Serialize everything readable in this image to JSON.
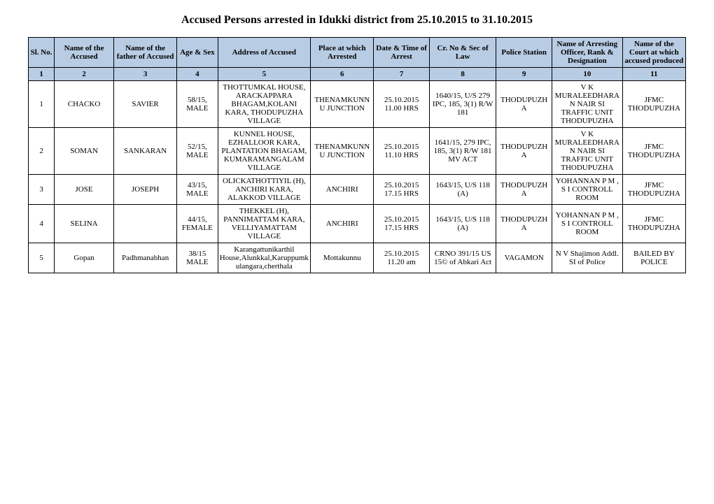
{
  "title": "Accused Persons arrested in   Idukki  district from  25.10.2015 to 31.10.2015",
  "headers": {
    "col1": "Sl. No.",
    "col2": "Name of the Accused",
    "col3": "Name of the father of Accused",
    "col4": "Age & Sex",
    "col5": "Address of Accused",
    "col6": "Place at which Arrested",
    "col7": "Date & Time of Arrest",
    "col8": "Cr. No & Sec of Law",
    "col9": "Police Station",
    "col10": "Name of Arresting Officer, Rank & Designation",
    "col11": "Name of the Court at which accused produced"
  },
  "colnums": {
    "c1": "1",
    "c2": "2",
    "c3": "3",
    "c4": "4",
    "c5": "5",
    "c6": "6",
    "c7": "7",
    "c8": "8",
    "c9": "9",
    "c10": "10",
    "c11": "11"
  },
  "rows": [
    {
      "slno": "1",
      "name": "CHACKO",
      "father": "SAVIER",
      "agesex": "58/15, MALE",
      "address": "THOTTUMKAL HOUSE, ARACKAPPARA BHAGAM,KOLANI KARA, THODUPUZHA VILLAGE",
      "place": "THENAMKUNNU JUNCTION",
      "datetime": "25.10.2015 11.00 HRS",
      "crno": "1640/15, U/S 279 IPC, 185, 3(1) R/W 181",
      "station": "THODUPUZHA",
      "officer": "V K MURALEEDHARAN NAIR SI TRAFFIC UNIT THODUPUZHA",
      "court": "JFMC THODUPUZHA"
    },
    {
      "slno": "2",
      "name": "SOMAN",
      "father": "SANKARAN",
      "agesex": "52/15, MALE",
      "address": "KUNNEL  HOUSE, EZHALLOOR KARA, PLANTATION BHAGAM, KUMARAMANGALAM VILLAGE",
      "place": "THENAMKUNNU JUNCTION",
      "datetime": "25.10.2015 11.10 HRS",
      "crno": "1641/15, 279 IPC, 185, 3(1) R/W 181 MV ACT",
      "station": "THODUPUZHA",
      "officer": "V K MURALEEDHARAN NAIR SI TRAFFIC UNIT THODUPUZHA",
      "court": "JFMC THODUPUZHA"
    },
    {
      "slno": "3",
      "name": "JOSE",
      "father": "JOSEPH",
      "agesex": "43/15, MALE",
      "address": "OLICKATHOTTIYIL (H), ANCHIRI KARA, ALAKKOD VILLAGE",
      "place": "ANCHIRI",
      "datetime": "25.10.2015 17.15 HRS",
      "crno": "1643/15, U/S 118 (A)",
      "station": "THODUPUZHA",
      "officer": "YOHANNAN P M , S I CONTROLL ROOM",
      "court": "JFMC THODUPUZHA"
    },
    {
      "slno": "4",
      "name": "SELINA",
      "father": "",
      "agesex": "44/15, FEMALE",
      "address": "THEKKEL (H), PANNIMATTAM KARA, VELLIYAMATTAM VILLAGE",
      "place": "ANCHIRI",
      "datetime": "25.10.2015 17.15 HRS",
      "crno": "1643/15, U/S 118 (A)",
      "station": "THODUPUZHA",
      "officer": "YOHANNAN P M , S I CONTROLL ROOM",
      "court": "JFMC THODUPUZHA"
    },
    {
      "slno": "5",
      "name": "Gopan",
      "father": "Padhmanabhan",
      "agesex": "38/15 MALE",
      "address": "Karangattunikarthil House,Alunkkal,Karuppumkulangara,cherthala",
      "place": "Mottakunnu",
      "datetime": "25.10.2015 11.20 am",
      "crno": "CRNO 391/15 US 15© of Abkari Act",
      "station": "VAGAMON",
      "officer": "N V Shajimon Addl. SI of Police",
      "court": "BAILED BY POLICE"
    }
  ],
  "colors": {
    "header_bg": "#b8cce4",
    "border": "#000000",
    "page_bg": "#ffffff"
  }
}
